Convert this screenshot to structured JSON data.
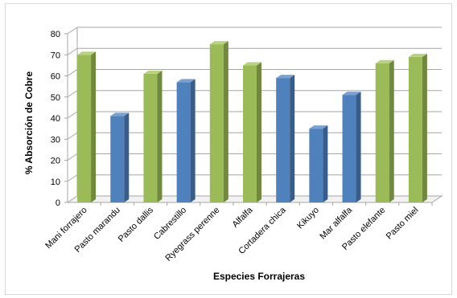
{
  "chart_data": {
    "type": "bar",
    "xlabel": "Especies Forrajeras",
    "ylabel": "% Absorción de Cobre",
    "ylim": [
      0,
      80
    ],
    "yticks": [
      0,
      10,
      20,
      30,
      40,
      50,
      60,
      70,
      80
    ],
    "grid": true,
    "legend": "none",
    "categories": [
      "Mani forrajero",
      "Pasto marandu",
      "Pasto dallis",
      "Cabrestillo",
      "Ryegrass perenne",
      "Alfalfa",
      "Cortadera chica",
      "Kikuyo",
      "Mar alfalfa",
      "Pasto elefante",
      "Pasto miel"
    ],
    "values": [
      70,
      41,
      61,
      57,
      75,
      65,
      59,
      35,
      51,
      66,
      69
    ],
    "bar_colors": [
      "green",
      "blue",
      "green",
      "blue",
      "green",
      "green",
      "blue",
      "blue",
      "blue",
      "green",
      "green"
    ],
    "colors": {
      "green": {
        "front": "#9bbb59",
        "side": "#71893f",
        "top": "#b9d27f"
      },
      "blue": {
        "front": "#4f81bd",
        "side": "#385d8a",
        "top": "#7ba1d0"
      }
    }
  }
}
